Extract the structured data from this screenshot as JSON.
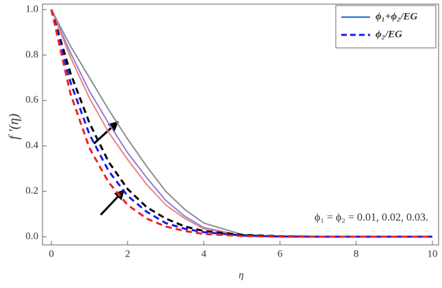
{
  "chart_data": {
    "type": "line",
    "xlabel": "η",
    "ylabel": "f '(η)",
    "annotation": "ϕ₁ = ϕ₂ = 0.01, 0.02, 0.03.",
    "x": [
      0,
      0.5,
      1,
      1.5,
      2,
      2.5,
      3,
      3.5,
      4,
      5,
      6,
      7,
      8,
      10
    ],
    "series": [
      {
        "color": "#8c8c8c",
        "dash": false,
        "values": [
          1,
          0.84,
          0.7,
          0.56,
          0.43,
          0.31,
          0.2,
          0.12,
          0.06,
          0.01,
          0,
          0,
          0,
          0
        ]
      },
      {
        "color": "#8a7fd8",
        "dash": false,
        "values": [
          1,
          0.81,
          0.64,
          0.5,
          0.37,
          0.26,
          0.16,
          0.09,
          0.04,
          0.005,
          0,
          0,
          0,
          0
        ]
      },
      {
        "color": "#f08080",
        "dash": false,
        "values": [
          1,
          0.79,
          0.61,
          0.46,
          0.34,
          0.23,
          0.14,
          0.08,
          0.035,
          0.005,
          0,
          0,
          0,
          0
        ]
      },
      {
        "color": "#000000",
        "dash": true,
        "values": [
          1,
          0.72,
          0.5,
          0.33,
          0.21,
          0.13,
          0.08,
          0.045,
          0.025,
          0.008,
          0.002,
          0,
          0,
          0
        ]
      },
      {
        "color": "#1a1aee",
        "dash": true,
        "values": [
          1,
          0.68,
          0.45,
          0.29,
          0.18,
          0.11,
          0.06,
          0.035,
          0.02,
          0.005,
          0.001,
          0,
          0,
          0
        ]
      },
      {
        "color": "#ee2222",
        "dash": true,
        "values": [
          1,
          0.63,
          0.39,
          0.24,
          0.14,
          0.08,
          0.045,
          0.025,
          0.012,
          0.003,
          0,
          0,
          0,
          0
        ]
      }
    ],
    "legend": [
      {
        "label": "ϕ₁+ϕ₂/EG",
        "color": "#3a7bd5",
        "dash": false
      },
      {
        "label": "ϕ₂/EG",
        "color": "#1a1aee",
        "dash": true
      }
    ],
    "xlim": [
      0,
      10
    ],
    "xticks": [
      0,
      2,
      4,
      6,
      8,
      10
    ],
    "ylim": [
      0,
      1
    ],
    "yticks": [
      {
        "value": 0,
        "label": "0.0"
      },
      0.2,
      0.4,
      0.6,
      0.8,
      {
        "value": 1,
        "label": "1.0"
      }
    ]
  }
}
